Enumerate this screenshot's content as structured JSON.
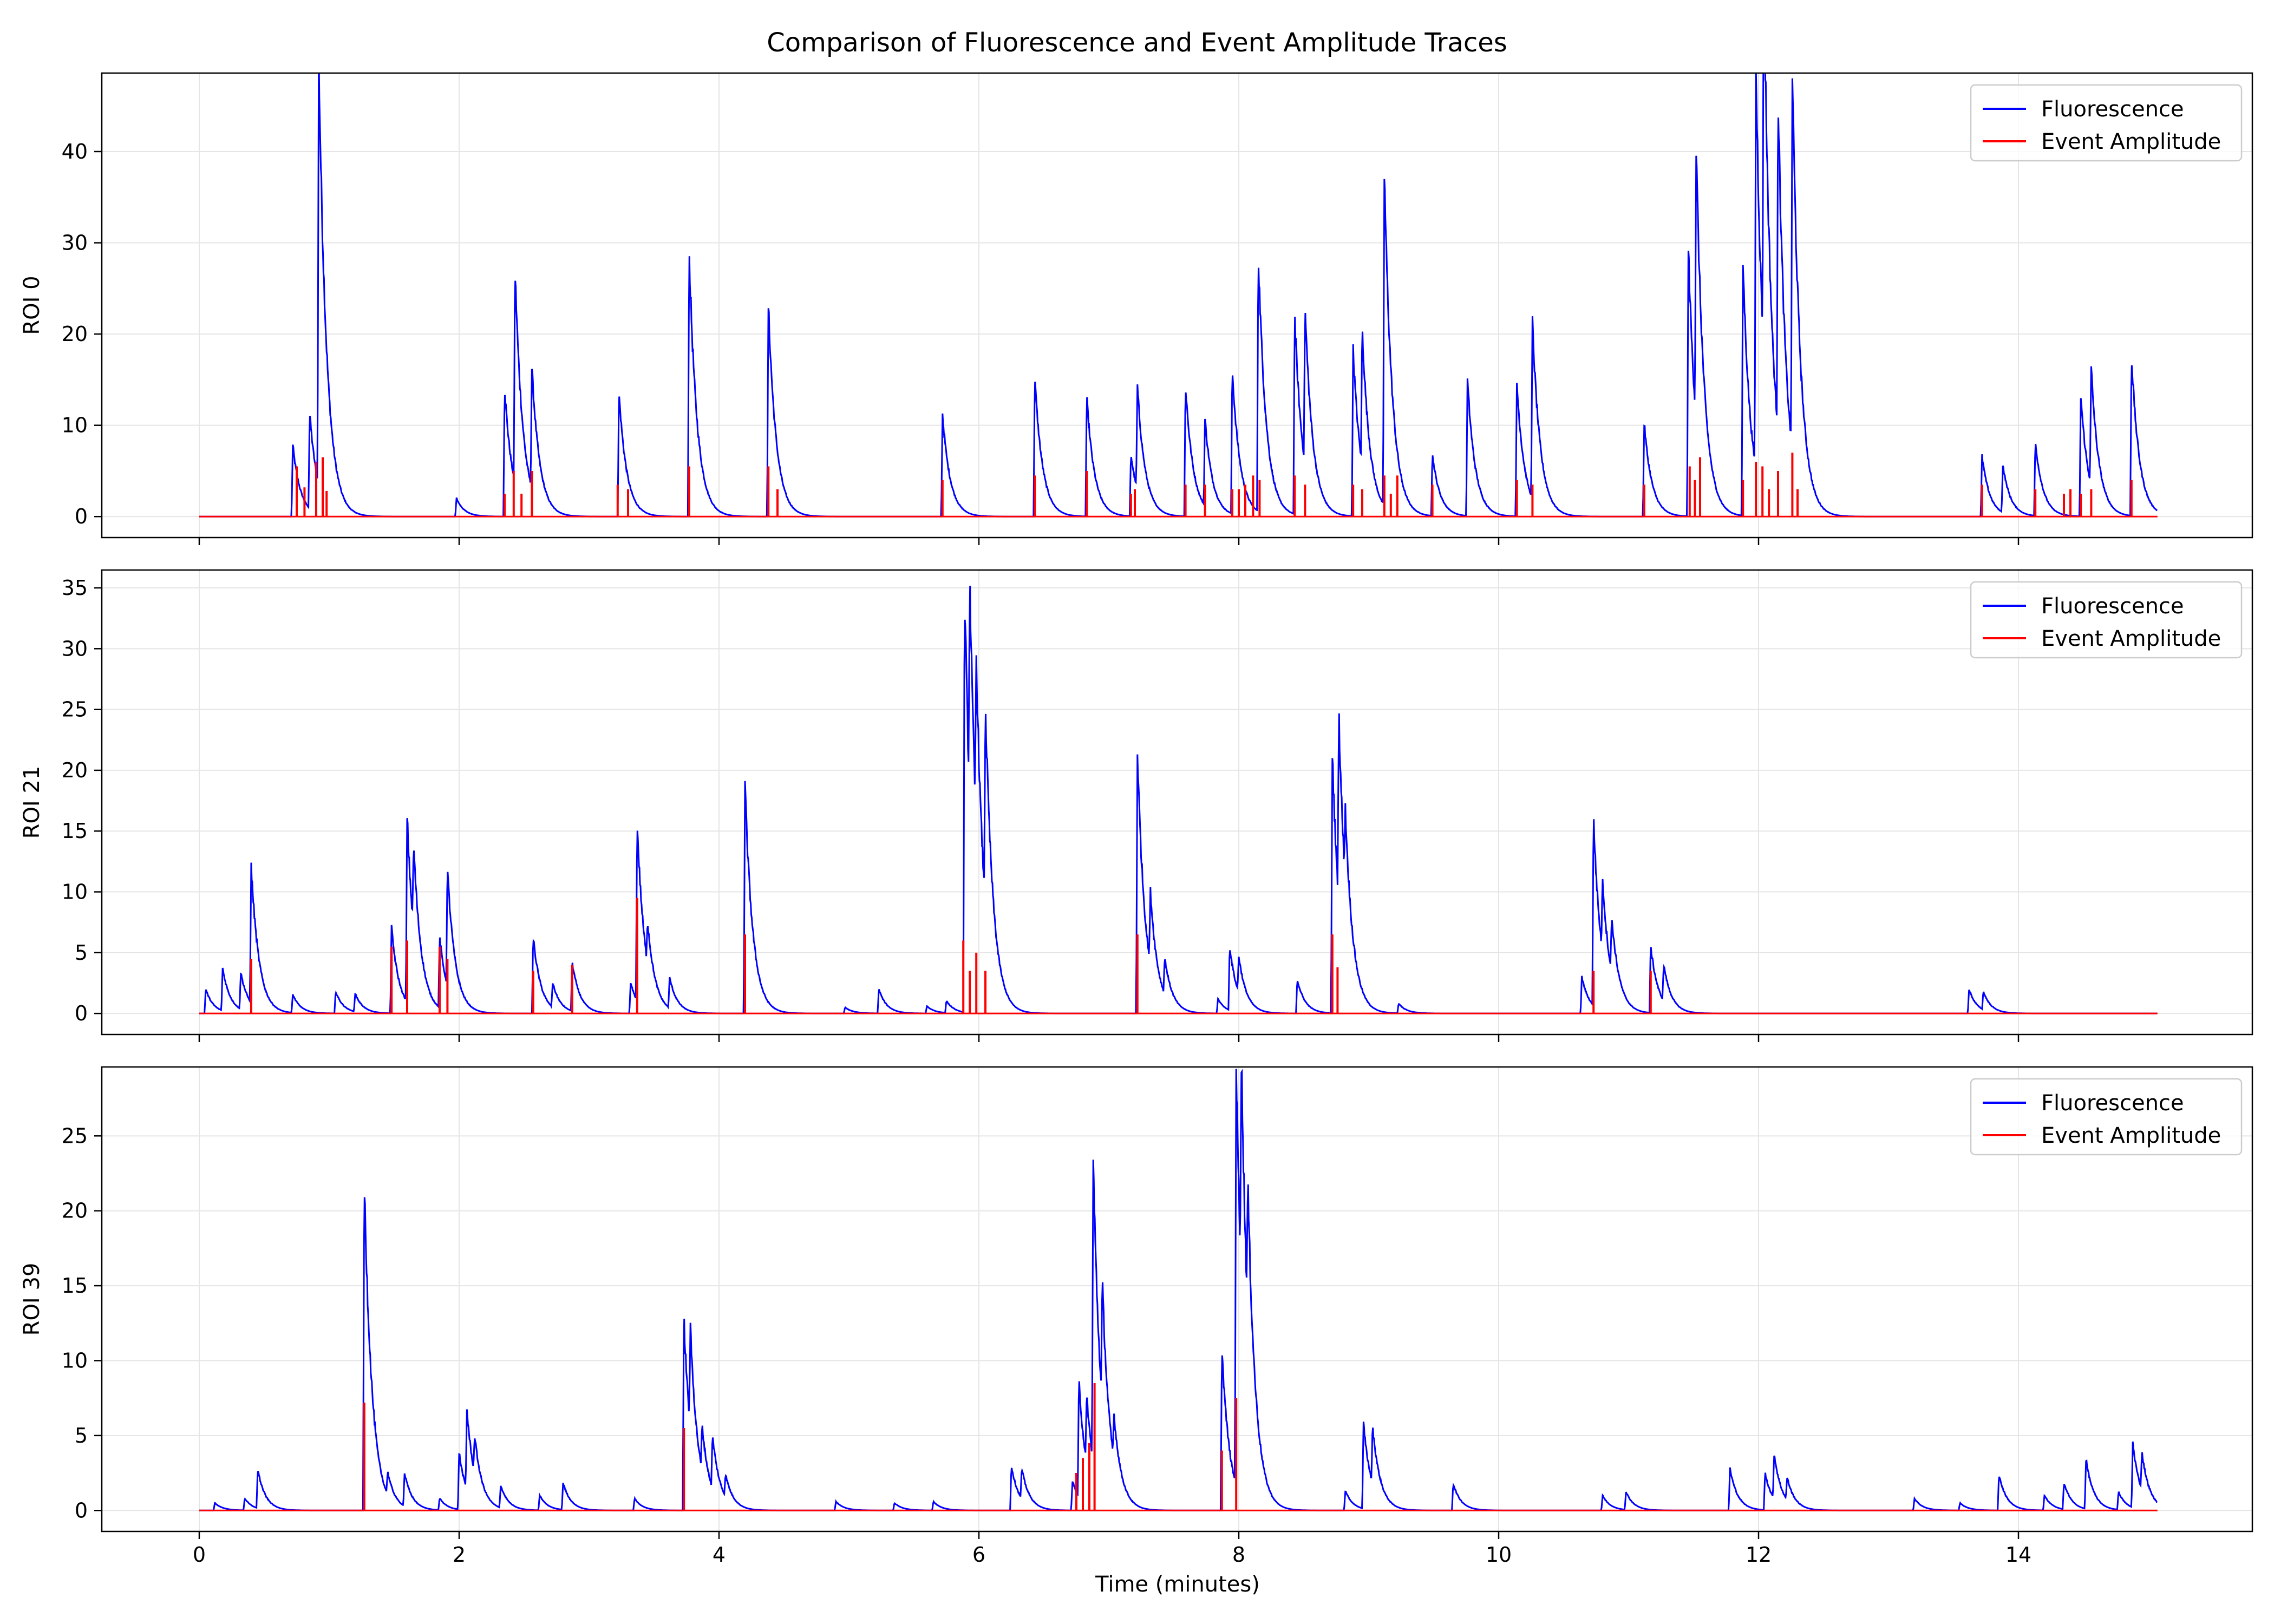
{
  "figure": {
    "title": "Comparison of Fluorescence and Event Amplitude Traces",
    "xlabel": "Time (minutes)"
  },
  "colors": {
    "fluorescence": "#0000ff",
    "event_amplitude": "#ff0000",
    "grid": "#e5e5e5",
    "legend_border": "#cccccc"
  },
  "legend": {
    "placement": "upper right",
    "entries": [
      "Fluorescence",
      "Event Amplitude"
    ]
  },
  "chart_data": [
    {
      "type": "line",
      "ylabel": "ROI 0",
      "xlim": [
        -0.75,
        15.8
      ],
      "ylim": [
        -2.3,
        48.6
      ],
      "xticks": [
        0,
        2,
        4,
        6,
        8,
        10,
        12,
        14
      ],
      "yticks": [
        0,
        10,
        20,
        30,
        40
      ],
      "grid": true,
      "series": [
        {
          "name": "Fluorescence",
          "peaks": [
            [
              0.72,
              7.8
            ],
            [
              0.85,
              10.5
            ],
            [
              0.92,
              46.6
            ],
            [
              1.98,
              2.0
            ],
            [
              2.35,
              14.2
            ],
            [
              2.43,
              23.4
            ],
            [
              2.56,
              13.2
            ],
            [
              3.23,
              13.6
            ],
            [
              3.77,
              29.1
            ],
            [
              4.38,
              23.1
            ],
            [
              5.72,
              11.2
            ],
            [
              6.43,
              15.2
            ],
            [
              6.83,
              13.0
            ],
            [
              7.17,
              6.8
            ],
            [
              7.22,
              11.2
            ],
            [
              7.59,
              14.4
            ],
            [
              7.74,
              9.5
            ],
            [
              7.95,
              15.8
            ],
            [
              8.15,
              28.4
            ],
            [
              8.43,
              21.9
            ],
            [
              8.51,
              17.0
            ],
            [
              8.88,
              18.2
            ],
            [
              8.95,
              15.0
            ],
            [
              9.12,
              36.4
            ],
            [
              9.49,
              6.7
            ],
            [
              9.76,
              14.8
            ],
            [
              10.14,
              14.6
            ],
            [
              10.26,
              19.3
            ],
            [
              11.12,
              10.2
            ],
            [
              11.46,
              29.4
            ],
            [
              11.52,
              29.5
            ],
            [
              11.88,
              27.8
            ],
            [
              11.98,
              44.0
            ],
            [
              12.04,
              42.2
            ],
            [
              12.15,
              36.9
            ],
            [
              12.26,
              41.3
            ],
            [
              13.72,
              6.6
            ],
            [
              13.88,
              5.2
            ],
            [
              14.13,
              8.1
            ],
            [
              14.48,
              13.2
            ],
            [
              14.56,
              12.8
            ],
            [
              14.87,
              17.6
            ]
          ]
        },
        {
          "name": "Event Amplitude",
          "events": [
            [
              0.75,
              5.5
            ],
            [
              0.81,
              3.2
            ],
            [
              0.9,
              6.0
            ],
            [
              0.95,
              6.5
            ],
            [
              0.98,
              2.8
            ],
            [
              2.35,
              2.5
            ],
            [
              2.42,
              5.0
            ],
            [
              2.48,
              2.5
            ],
            [
              2.56,
              5.0
            ],
            [
              3.22,
              3.5
            ],
            [
              3.3,
              3.0
            ],
            [
              3.77,
              5.5
            ],
            [
              4.38,
              5.5
            ],
            [
              4.45,
              3.0
            ],
            [
              5.72,
              4.0
            ],
            [
              6.43,
              4.5
            ],
            [
              6.83,
              5.0
            ],
            [
              7.17,
              2.5
            ],
            [
              7.2,
              3.0
            ],
            [
              7.59,
              3.5
            ],
            [
              7.74,
              3.5
            ],
            [
              7.95,
              3.0
            ],
            [
              8.0,
              3.0
            ],
            [
              8.05,
              3.5
            ],
            [
              8.11,
              4.5
            ],
            [
              8.16,
              4.0
            ],
            [
              8.43,
              4.5
            ],
            [
              8.51,
              3.5
            ],
            [
              8.88,
              3.5
            ],
            [
              8.95,
              3.0
            ],
            [
              9.12,
              4.5
            ],
            [
              9.17,
              2.5
            ],
            [
              9.22,
              4.5
            ],
            [
              9.49,
              3.5
            ],
            [
              10.14,
              4.0
            ],
            [
              10.26,
              3.5
            ],
            [
              11.12,
              3.5
            ],
            [
              11.47,
              5.5
            ],
            [
              11.51,
              4.0
            ],
            [
              11.55,
              6.5
            ],
            [
              11.88,
              4.0
            ],
            [
              11.98,
              6.0
            ],
            [
              12.03,
              5.5
            ],
            [
              12.08,
              3.0
            ],
            [
              12.15,
              5.0
            ],
            [
              12.26,
              7.0
            ],
            [
              12.3,
              3.0
            ],
            [
              13.72,
              3.5
            ],
            [
              14.13,
              3.0
            ],
            [
              14.35,
              2.5
            ],
            [
              14.4,
              3.0
            ],
            [
              14.48,
              2.5
            ],
            [
              14.56,
              3.0
            ],
            [
              14.87,
              4.0
            ]
          ]
        }
      ]
    },
    {
      "type": "line",
      "ylabel": "ROI 21",
      "xlim": [
        -0.75,
        15.8
      ],
      "ylim": [
        -1.73,
        36.47
      ],
      "xticks": [
        0,
        2,
        4,
        6,
        8,
        10,
        12,
        14
      ],
      "yticks": [
        0,
        5,
        10,
        15,
        20,
        25,
        30,
        35
      ],
      "grid": true,
      "series": [
        {
          "name": "Fluorescence",
          "peaks": [
            [
              0.05,
              2.0
            ],
            [
              0.18,
              3.5
            ],
            [
              0.32,
              3.0
            ],
            [
              0.4,
              11.2
            ],
            [
              0.72,
              1.5
            ],
            [
              1.05,
              1.8
            ],
            [
              1.2,
              1.5
            ],
            [
              1.48,
              7.0
            ],
            [
              1.6,
              15.2
            ],
            [
              1.65,
              6.8
            ],
            [
              1.85,
              5.8
            ],
            [
              1.91,
              9.5
            ],
            [
              2.57,
              6.3
            ],
            [
              2.72,
              2.0
            ],
            [
              2.87,
              4.0
            ],
            [
              3.32,
              2.5
            ],
            [
              3.37,
              14.6
            ],
            [
              3.45,
              3.5
            ],
            [
              3.62,
              2.5
            ],
            [
              4.2,
              18.7
            ],
            [
              4.97,
              0.5
            ],
            [
              5.23,
              2.0
            ],
            [
              5.6,
              0.6
            ],
            [
              5.75,
              1.0
            ],
            [
              5.89,
              34.7
            ],
            [
              5.93,
              18.0
            ],
            [
              5.98,
              13.8
            ],
            [
              6.05,
              16.3
            ],
            [
              7.22,
              21.4
            ],
            [
              7.32,
              6.0
            ],
            [
              7.43,
              3.0
            ],
            [
              7.84,
              1.2
            ],
            [
              7.93,
              5.3
            ],
            [
              8.0,
              3.0
            ],
            [
              8.45,
              2.8
            ],
            [
              8.72,
              21.4
            ],
            [
              8.77,
              15.5
            ],
            [
              8.82,
              6.0
            ],
            [
              9.23,
              0.8
            ],
            [
              10.64,
              3.0
            ],
            [
              10.73,
              15.4
            ],
            [
              10.8,
              6.0
            ],
            [
              10.87,
              4.5
            ],
            [
              11.17,
              5.5
            ],
            [
              11.27,
              3.0
            ],
            [
              13.62,
              2.0
            ],
            [
              13.73,
              1.5
            ]
          ]
        },
        {
          "name": "Event Amplitude",
          "events": [
            [
              0.4,
              4.5
            ],
            [
              1.48,
              5.5
            ],
            [
              1.6,
              6.0
            ],
            [
              1.85,
              5.5
            ],
            [
              1.91,
              4.5
            ],
            [
              2.57,
              3.5
            ],
            [
              2.87,
              4.0
            ],
            [
              3.37,
              9.5
            ],
            [
              4.2,
              6.5
            ],
            [
              5.88,
              6.0
            ],
            [
              5.93,
              3.5
            ],
            [
              5.98,
              5.0
            ],
            [
              6.05,
              3.5
            ],
            [
              7.22,
              6.5
            ],
            [
              8.72,
              6.5
            ],
            [
              8.76,
              3.8
            ],
            [
              10.73,
              3.5
            ],
            [
              11.17,
              3.5
            ]
          ]
        }
      ]
    },
    {
      "type": "line",
      "ylabel": "ROI 39",
      "xlim": [
        -0.75,
        15.8
      ],
      "ylim": [
        -1.4,
        29.6
      ],
      "xticks": [
        0,
        2,
        4,
        6,
        8,
        10,
        12,
        14
      ],
      "yticks": [
        0,
        5,
        10,
        15,
        20,
        25
      ],
      "grid": true,
      "series": [
        {
          "name": "Fluorescence",
          "peaks": [
            [
              0.12,
              0.5
            ],
            [
              0.35,
              0.8
            ],
            [
              0.45,
              2.6
            ],
            [
              1.27,
              22.0
            ],
            [
              1.45,
              1.5
            ],
            [
              1.58,
              2.2
            ],
            [
              1.85,
              0.8
            ],
            [
              2.0,
              3.8
            ],
            [
              2.06,
              5.3
            ],
            [
              2.12,
              2.5
            ],
            [
              2.32,
              1.5
            ],
            [
              2.62,
              1.0
            ],
            [
              2.8,
              1.8
            ],
            [
              3.35,
              0.8
            ],
            [
              3.73,
              12.8
            ],
            [
              3.78,
              6.5
            ],
            [
              3.87,
              3.0
            ],
            [
              3.95,
              3.5
            ],
            [
              4.05,
              1.5
            ],
            [
              4.9,
              0.6
            ],
            [
              5.35,
              0.5
            ],
            [
              5.65,
              0.6
            ],
            [
              6.25,
              3.0
            ],
            [
              6.33,
              2.0
            ],
            [
              6.72,
              2.0
            ],
            [
              6.77,
              7.8
            ],
            [
              6.83,
              4.5
            ],
            [
              6.88,
              19.9
            ],
            [
              6.95,
              8.0
            ],
            [
              7.04,
              3.0
            ],
            [
              7.87,
              10.8
            ],
            [
              7.98,
              28.2
            ],
            [
              8.02,
              15.0
            ],
            [
              8.07,
              8.5
            ],
            [
              8.82,
              1.3
            ],
            [
              8.96,
              5.7
            ],
            [
              9.03,
              3.8
            ],
            [
              9.65,
              1.8
            ],
            [
              10.8,
              1.0
            ],
            [
              10.98,
              1.2
            ],
            [
              11.78,
              2.8
            ],
            [
              12.05,
              2.5
            ],
            [
              12.12,
              3.0
            ],
            [
              12.22,
              1.5
            ],
            [
              13.2,
              0.8
            ],
            [
              13.55,
              0.5
            ],
            [
              13.85,
              2.4
            ],
            [
              14.2,
              1.0
            ],
            [
              14.35,
              1.8
            ],
            [
              14.52,
              3.3
            ],
            [
              14.77,
              1.2
            ],
            [
              14.88,
              4.3
            ],
            [
              14.95,
              2.5
            ]
          ]
        },
        {
          "name": "Event Amplitude",
          "events": [
            [
              1.27,
              7.2
            ],
            [
              3.73,
              5.5
            ],
            [
              6.75,
              2.5
            ],
            [
              6.8,
              3.5
            ],
            [
              6.85,
              4.5
            ],
            [
              6.89,
              8.5
            ],
            [
              7.87,
              4.0
            ],
            [
              7.98,
              7.5
            ]
          ]
        }
      ]
    }
  ]
}
